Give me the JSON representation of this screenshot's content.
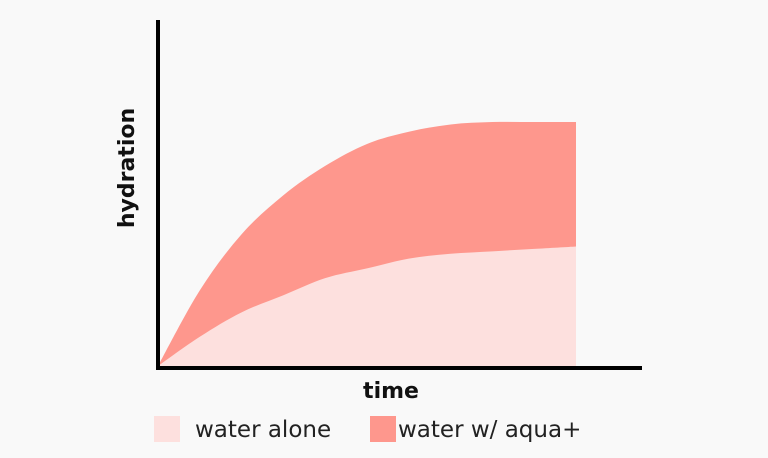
{
  "chart_data": {
    "type": "area",
    "xlabel": "time",
    "ylabel": "hydration",
    "x_ticks": false,
    "y_ticks": false,
    "grid": false,
    "legend_position": "bottom",
    "series": [
      {
        "name": "water alone",
        "color": "#fde0de",
        "shape": "saturating-curve",
        "x": [
          0,
          0.1,
          0.2,
          0.3,
          0.4,
          0.5,
          0.6,
          0.7,
          0.8,
          0.9,
          1.0
        ],
        "values": [
          0,
          0.12,
          0.22,
          0.29,
          0.36,
          0.4,
          0.44,
          0.46,
          0.47,
          0.48,
          0.49
        ]
      },
      {
        "name": "water w/ aqua+",
        "color": "#fe978d",
        "shape": "saturating-curve",
        "x": [
          0,
          0.1,
          0.2,
          0.3,
          0.4,
          0.5,
          0.6,
          0.7,
          0.8,
          0.9,
          1.0
        ],
        "values": [
          0,
          0.31,
          0.54,
          0.7,
          0.82,
          0.91,
          0.96,
          0.99,
          1.0,
          1.0,
          1.0
        ]
      }
    ]
  }
}
